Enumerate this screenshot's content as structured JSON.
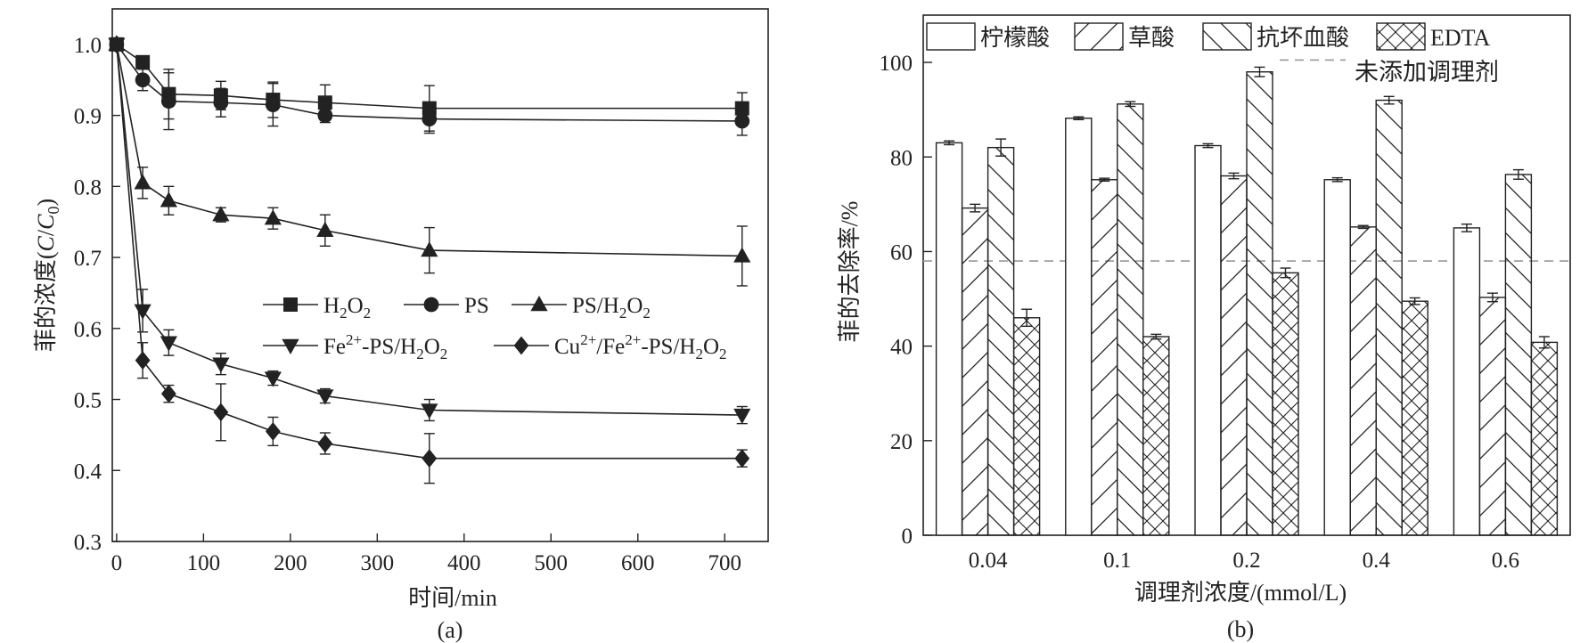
{
  "chart_data": [
    {
      "panel": "(a)",
      "type": "line",
      "xlabel": "时间/min",
      "ylabel": "菲的浓度(C/C0)",
      "ylabel_parts": {
        "prefix": "菲的浓度(",
        "c": "C",
        "slash": "/",
        "c0": "C",
        "c0_sub": "0",
        "suffix": ")"
      },
      "xlim": [
        -5,
        750
      ],
      "ylim": [
        0.3,
        1.05
      ],
      "xticks": [
        0,
        100,
        200,
        300,
        400,
        500,
        600,
        700
      ],
      "yticks": [
        0.3,
        0.4,
        0.5,
        0.6,
        0.7,
        0.8,
        0.9,
        1.0
      ],
      "x": [
        0,
        30,
        60,
        120,
        180,
        240,
        360,
        720
      ],
      "legend": [
        {
          "series": 0,
          "parts": [
            {
              "t": "H"
            },
            {
              "t": "2",
              "sub": true
            },
            {
              "t": "O"
            },
            {
              "t": "2",
              "sub": true
            }
          ]
        },
        {
          "series": 1,
          "parts": [
            {
              "t": "PS"
            }
          ]
        },
        {
          "series": 2,
          "parts": [
            {
              "t": "PS/H"
            },
            {
              "t": "2",
              "sub": true
            },
            {
              "t": "O"
            },
            {
              "t": "2",
              "sub": true
            }
          ]
        },
        {
          "series": 3,
          "parts": [
            {
              "t": "Fe"
            },
            {
              "t": "2+",
              "sup": true
            },
            {
              "t": "-PS/H"
            },
            {
              "t": "2",
              "sub": true
            },
            {
              "t": "O"
            },
            {
              "t": "2",
              "sub": true
            }
          ]
        },
        {
          "series": 4,
          "parts": [
            {
              "t": "Cu"
            },
            {
              "t": "2+",
              "sup": true
            },
            {
              "t": "/Fe"
            },
            {
              "t": "2+",
              "sup": true
            },
            {
              "t": "-PS/H"
            },
            {
              "t": "2",
              "sub": true
            },
            {
              "t": "O"
            },
            {
              "t": "2",
              "sub": true
            }
          ]
        }
      ],
      "series": [
        {
          "name": "H2O2",
          "marker": "square",
          "values": [
            1.0,
            0.975,
            0.93,
            0.928,
            0.922,
            0.918,
            0.91,
            0.91
          ],
          "errors": [
            0.005,
            0.008,
            0.035,
            0.02,
            0.025,
            0.025,
            0.032,
            0.022
          ]
        },
        {
          "name": "PS",
          "marker": "circle",
          "values": [
            1.0,
            0.95,
            0.92,
            0.918,
            0.915,
            0.9,
            0.895,
            0.892
          ],
          "errors": [
            0.005,
            0.015,
            0.04,
            0.02,
            0.03,
            0.01,
            0.02,
            0.02
          ]
        },
        {
          "name": "PS/H2O2",
          "marker": "triangle-up",
          "values": [
            1.0,
            0.805,
            0.78,
            0.76,
            0.755,
            0.738,
            0.71,
            0.702
          ],
          "errors": [
            0.005,
            0.022,
            0.02,
            0.01,
            0.015,
            0.022,
            0.032,
            0.042
          ]
        },
        {
          "name": "Fe2+-PS/H2O2",
          "marker": "triangle-down",
          "values": [
            1.0,
            0.625,
            0.58,
            0.55,
            0.53,
            0.505,
            0.485,
            0.478
          ],
          "errors": [
            0.005,
            0.03,
            0.018,
            0.015,
            0.01,
            0.01,
            0.015,
            0.012
          ]
        },
        {
          "name": "Cu2+/Fe2+-PS/H2O2",
          "marker": "diamond",
          "values": [
            1.0,
            0.555,
            0.508,
            0.482,
            0.455,
            0.438,
            0.417,
            0.417
          ],
          "errors": [
            0.005,
            0.025,
            0.012,
            0.04,
            0.02,
            0.015,
            0.035,
            0.012
          ]
        }
      ]
    },
    {
      "panel": "(b)",
      "type": "bar",
      "xlabel": "调理剂浓度/(mmol/L)",
      "ylabel": "菲的去除率/%",
      "ylim": [
        0,
        110
      ],
      "yticks": [
        0,
        20,
        40,
        60,
        80,
        100
      ],
      "categories": [
        "0.04",
        "0.1",
        "0.2",
        "0.4",
        "0.6"
      ],
      "reference_line": {
        "label": "未添加调理剂",
        "value": 58
      },
      "series": [
        {
          "name": "柠檬酸",
          "pattern": "none",
          "values": [
            83,
            88.2,
            82.4,
            75.2,
            65
          ],
          "errors": [
            0.4,
            0.3,
            0.4,
            0.4,
            0.8
          ]
        },
        {
          "name": "草酸",
          "pattern": "forward-diagonal",
          "values": [
            69.2,
            75.2,
            76,
            65.2,
            50.3
          ],
          "errors": [
            0.8,
            0.3,
            0.6,
            0.3,
            0.9
          ]
        },
        {
          "name": "抗坏血酸",
          "pattern": "backward-diagonal",
          "values": [
            82,
            91.2,
            98,
            92,
            76.3
          ],
          "errors": [
            1.8,
            0.5,
            1.0,
            0.8,
            1.0
          ]
        },
        {
          "name": "EDTA",
          "pattern": "cross-hatch",
          "values": [
            46,
            42,
            55.5,
            49.5,
            40.8
          ],
          "errors": [
            1.8,
            0.5,
            1.0,
            0.7,
            1.2
          ]
        }
      ]
    }
  ]
}
